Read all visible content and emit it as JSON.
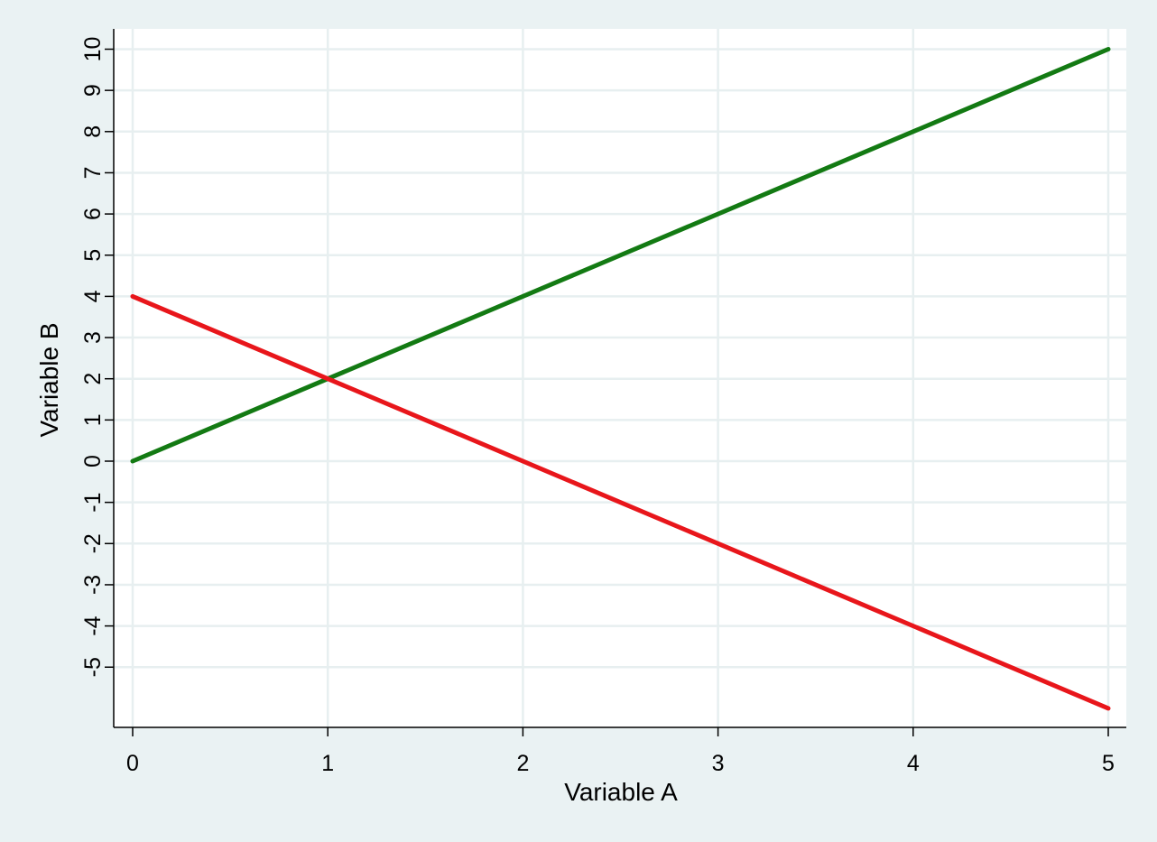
{
  "chart_data": {
    "type": "line",
    "title": "",
    "xlabel": "Variable A",
    "ylabel": "Variable B",
    "xlim": [
      0,
      5
    ],
    "ylim": [
      -6,
      10
    ],
    "x_ticks": [
      0,
      1,
      2,
      3,
      4,
      5
    ],
    "y_ticks": [
      -5,
      -4,
      -3,
      -2,
      -1,
      0,
      1,
      2,
      3,
      4,
      5,
      6,
      7,
      8,
      9,
      10
    ],
    "grid": true,
    "legend": "none",
    "series": [
      {
        "color": "#137a13",
        "x": [
          0,
          5
        ],
        "y": [
          0,
          10
        ]
      },
      {
        "color": "#e8161b",
        "x": [
          0,
          5
        ],
        "y": [
          4,
          -6
        ]
      }
    ]
  },
  "colors": {
    "background": "#eaf2f3",
    "plot_area": "#ffffff",
    "grid": "#e7eff0",
    "axis": "#000000"
  }
}
